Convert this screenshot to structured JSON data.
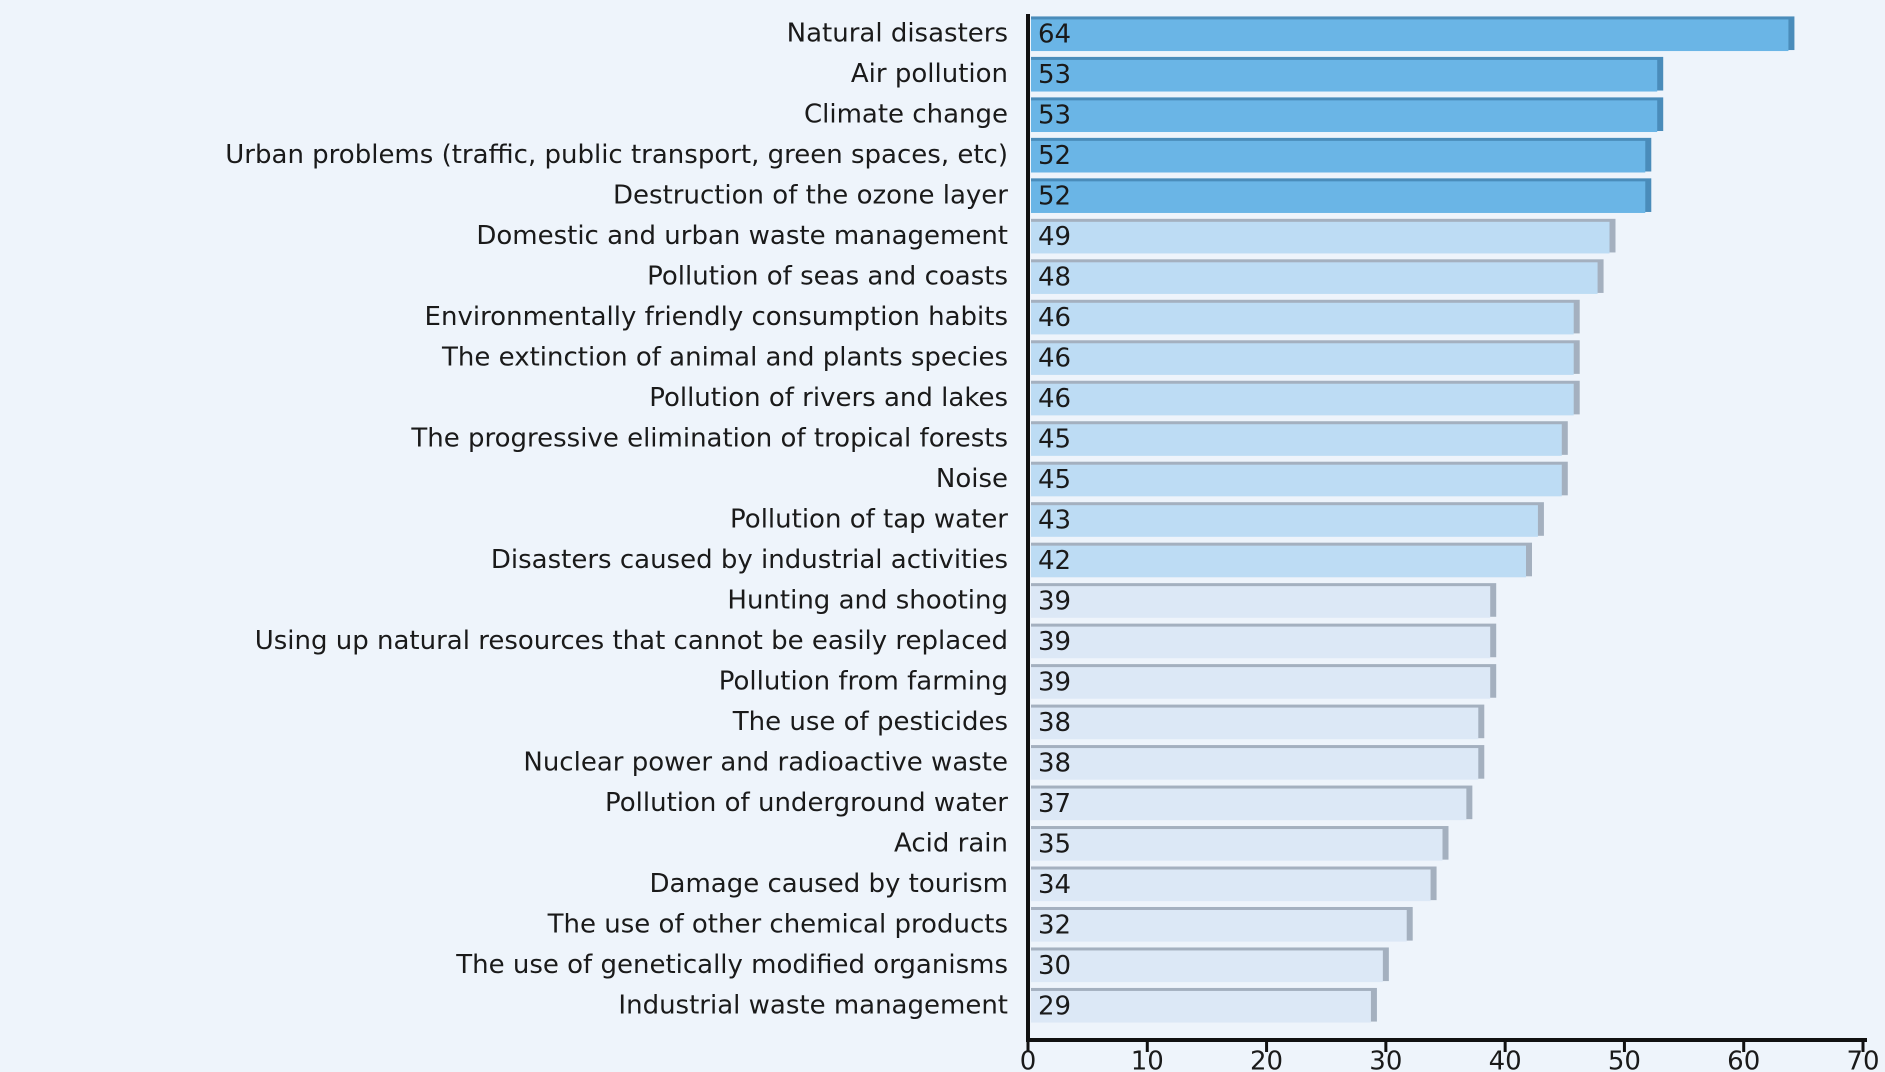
{
  "chart_data": {
    "type": "hbar",
    "categories": [
      "Natural disasters",
      "Air pollution",
      "Climate change",
      "Urban problems (traffic, public transport, green spaces, etc)",
      "Destruction of the ozone layer",
      "Domestic and urban waste management",
      "Pollution of seas and coasts",
      "Environmentally friendly consumption habits",
      "The extinction of animal and plants species",
      "Pollution of rivers and lakes",
      "The progressive elimination of tropical forests",
      "Noise",
      "Pollution of tap water",
      "Disasters caused by industrial activities",
      "Hunting and shooting",
      "Using up natural resources that cannot be easily replaced",
      "Pollution from farming",
      "The use of pesticides",
      "Nuclear power and radioactive waste",
      "Pollution of underground water",
      "Acid rain",
      "Damage caused by tourism",
      "The use of other chemical products",
      "The use of genetically modified organisms",
      "Industrial waste management"
    ],
    "values": [
      64,
      53,
      53,
      52,
      52,
      49,
      48,
      46,
      46,
      46,
      45,
      45,
      43,
      42,
      39,
      39,
      39,
      38,
      38,
      37,
      35,
      34,
      32,
      30,
      29
    ],
    "colors": [
      "#6ab5e6",
      "#6ab5e6",
      "#6ab5e6",
      "#6ab5e6",
      "#6ab5e6",
      "#bddcf4",
      "#bddcf4",
      "#bddcf4",
      "#bddcf4",
      "#bddcf4",
      "#bddcf4",
      "#bddcf4",
      "#bddcf4",
      "#bddcf4",
      "#dce8f6",
      "#dce8f6",
      "#dce8f6",
      "#dce8f6",
      "#dce8f6",
      "#dce8f6",
      "#dce8f6",
      "#dce8f6",
      "#dce8f6",
      "#dce8f6",
      "#dce8f6"
    ],
    "xlim": [
      0,
      70
    ],
    "xticks": [
      0,
      10,
      20,
      30,
      40,
      50,
      60,
      70
    ]
  }
}
